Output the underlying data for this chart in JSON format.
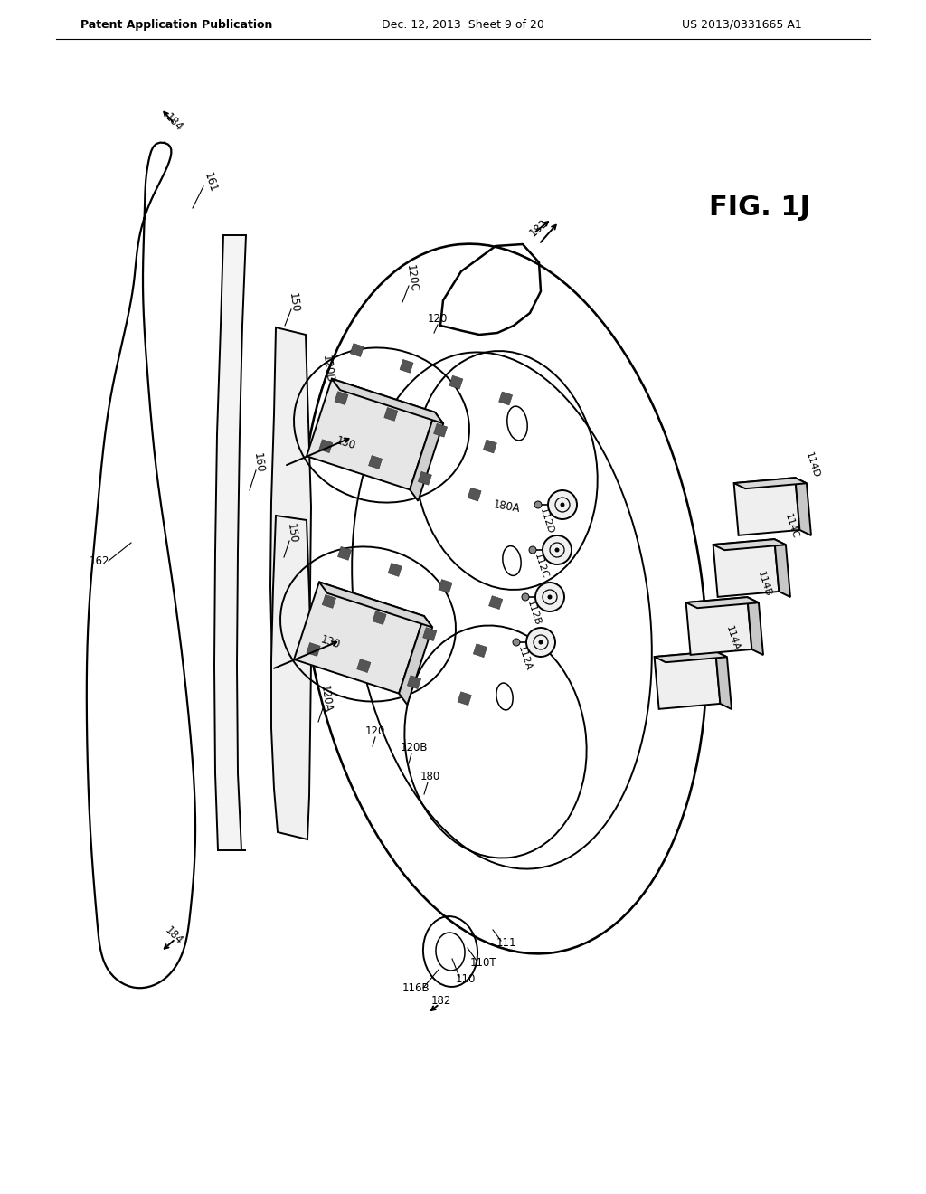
{
  "bg_color": "#ffffff",
  "header_left": "Patent Application Publication",
  "header_center": "Dec. 12, 2013  Sheet 9 of 20",
  "header_right": "US 2013/0331665 A1",
  "lc": "#000000",
  "lw": 1.4
}
